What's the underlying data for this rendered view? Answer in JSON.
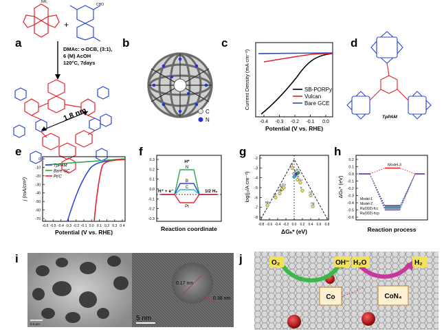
{
  "panel_labels": [
    "a",
    "b",
    "c",
    "d",
    "e",
    "f",
    "g",
    "h",
    "i",
    "j"
  ],
  "panel_a": {
    "conditions": [
      "DMAc: o-DCB, (3:1),",
      "6 (M) AcOH",
      "120°C, 7days"
    ],
    "plus": "+",
    "pore": "1.8 nm",
    "cho": "CHO",
    "nh2": "NH₂"
  },
  "panel_b": {
    "legend": [
      {
        "label": "C",
        "color": "#e5e5e5"
      },
      {
        "label": "N",
        "color": "#2233dd"
      }
    ]
  },
  "panel_c": {
    "ylabel": "Current Density (mA cm⁻²)",
    "xlabel": "Potential (V vs. RHE)",
    "xticks": [
      "-0.4",
      "-0.3",
      "-0.2",
      "-0.1",
      "0.0"
    ],
    "legend": [
      {
        "name": "SB-PORPy",
        "color": "#000000"
      },
      {
        "name": "Vulcan",
        "color": "#e8202a"
      },
      {
        "name": "Bare GCE",
        "color": "#2a46d8"
      }
    ]
  },
  "panel_d": {
    "caption": "TpPAM"
  },
  "panel_e": {
    "ylabel": "j (mA/cm²)",
    "xlabel": "Potential (V vs. RHE)",
    "xticks": [
      "-0.6",
      "-0.5",
      "-0.4",
      "-0.3",
      "-0.2",
      "-0.1",
      "0.0",
      "0.1",
      "0.2",
      "0.3",
      "0.4"
    ],
    "yticks": [
      "0",
      "-10",
      "-20",
      "-30",
      "-40",
      "-50",
      "-60",
      "-70"
    ],
    "legend": [
      {
        "name": "TpPAM",
        "color": "#2a46d8"
      },
      {
        "name": "Bare GC",
        "color": "#2aa84a"
      },
      {
        "name": "Pt/C",
        "color": "#e8202a"
      }
    ]
  },
  "panel_f": {
    "xlabel": "Reaction coordinate",
    "yticks": [
      "0.3",
      "0.2",
      "0.1",
      "0.0",
      "-0.1",
      "-0.2",
      "-0.3"
    ],
    "labels": {
      "hplus": "H⁺ + e⁻",
      "half": "1/2 H₂",
      "h": "H*",
      "n": "N",
      "b": "B",
      "c": "C",
      "pt": "Pt"
    }
  },
  "panel_g": {
    "ylabel": "log(j₀/A cm⁻²)",
    "xlabel": "ΔGₕ* (eV)",
    "xticks": [
      "-0.8",
      "-0.6",
      "-0.4",
      "-0.2",
      "0.0",
      "0.2",
      "0.4",
      "0.6",
      "0.8"
    ],
    "yticks": [
      "-2",
      "-3",
      "-4",
      "-5",
      "-6",
      "-7",
      "-8"
    ],
    "points": [
      {
        "label": "Pt",
        "dg": -0.05,
        "logj": -3.0
      },
      {
        "label": "Ni",
        "dg": -0.3,
        "logj": -5.2
      },
      {
        "label": "Co",
        "dg": -0.25,
        "logj": -5.0
      },
      {
        "label": "W",
        "dg": -0.45,
        "logj": -6.0
      },
      {
        "label": "Nb",
        "dg": -0.65,
        "logj": -6.8
      },
      {
        "label": "Mo",
        "dg": -0.35,
        "logj": -5.6
      },
      {
        "label": "Cu",
        "dg": 0.15,
        "logj": -4.5
      },
      {
        "label": "Ag",
        "dg": 0.45,
        "logj": -6.9
      },
      {
        "label": "Au",
        "dg": 0.4,
        "logj": -5.8
      },
      {
        "label": "B",
        "dg": 0.05,
        "logj": -3.6
      },
      {
        "label": "C",
        "dg": 0.0,
        "logj": -3.9
      },
      {
        "label": "N",
        "dg": 0.1,
        "logj": -3.5
      },
      {
        "label": "Ir",
        "dg": 0.2,
        "logj": -5.3
      },
      {
        "label": "Rh",
        "dg": 0.08,
        "logj": -4.2
      }
    ]
  },
  "panel_h": {
    "ylabel": "ΔGₕ* (eV)",
    "xlabel": "Reaction process",
    "yticks": [
      "0.2",
      "0.1",
      "0.0",
      "-0.1",
      "-0.2",
      "-0.3",
      "-0.4",
      "-0.5",
      "-0.6"
    ],
    "series": [
      {
        "name": "Model-3",
        "color": "#e8202a",
        "value": 0.08
      },
      {
        "name": "Model-1",
        "color": "#2a46d8",
        "value": -0.46
      },
      {
        "name": "Model-2",
        "color": "#1aa07a",
        "value": -0.48
      },
      {
        "name": "Ru(002)-fcc",
        "color": "#555555",
        "value": -0.44
      },
      {
        "name": "Ru(002)-hcp",
        "color": "#8844cc",
        "value": -0.5
      }
    ]
  },
  "panel_i": {
    "scale_left": "0.5 μm",
    "scale_right": "5 nm",
    "d1": "0.17 nm",
    "d2": "0.38 nm"
  },
  "panel_j": {
    "labels": [
      "O₂",
      "OH⁻",
      "H₂O",
      "H₂"
    ],
    "boxes": [
      "Co",
      "CoN₄"
    ],
    "colors": {
      "bubble": "#f2e25a",
      "box": "#fdf1d2",
      "green": "#3cb84a",
      "magenta": "#c8389a"
    }
  }
}
